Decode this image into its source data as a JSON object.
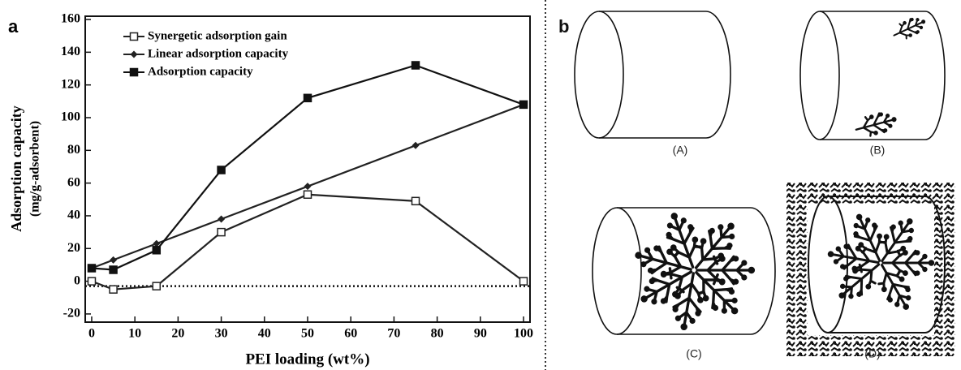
{
  "chart_data": {
    "type": "line",
    "panel_label": "a",
    "xlabel": "PEI loading (wt%)",
    "ylabel": [
      "Adsorption capacity",
      "(mg/g-adsorbent)"
    ],
    "x": [
      0,
      5,
      15,
      30,
      50,
      75,
      100
    ],
    "series": [
      {
        "name": "Synergetic adsorption gain",
        "color": "#222222",
        "marker": "open-square",
        "values": [
          0,
          -5,
          -3,
          30,
          53,
          49,
          0
        ]
      },
      {
        "name": "Linear adsorption capacity",
        "color": "#222222",
        "marker": "diamond",
        "values": [
          8,
          13,
          23,
          38,
          58,
          83,
          108
        ]
      },
      {
        "name": "Adsorption capacity",
        "color": "#111111",
        "marker": "square",
        "values": [
          8,
          7,
          19,
          68,
          112,
          132,
          108
        ]
      }
    ],
    "hline": -3,
    "xlim": [
      -1.5,
      101.5
    ],
    "xticks": [
      0,
      10,
      20,
      30,
      40,
      50,
      60,
      70,
      80,
      90,
      100
    ],
    "ylim": [
      -25,
      162
    ],
    "yticks": [
      -20,
      0,
      20,
      40,
      60,
      80,
      100,
      120,
      140,
      160
    ],
    "legend": "upper-left"
  },
  "diagram": {
    "panel_label": "b",
    "labels": [
      "(A)",
      "(B)",
      "(C)",
      "(D)"
    ]
  }
}
